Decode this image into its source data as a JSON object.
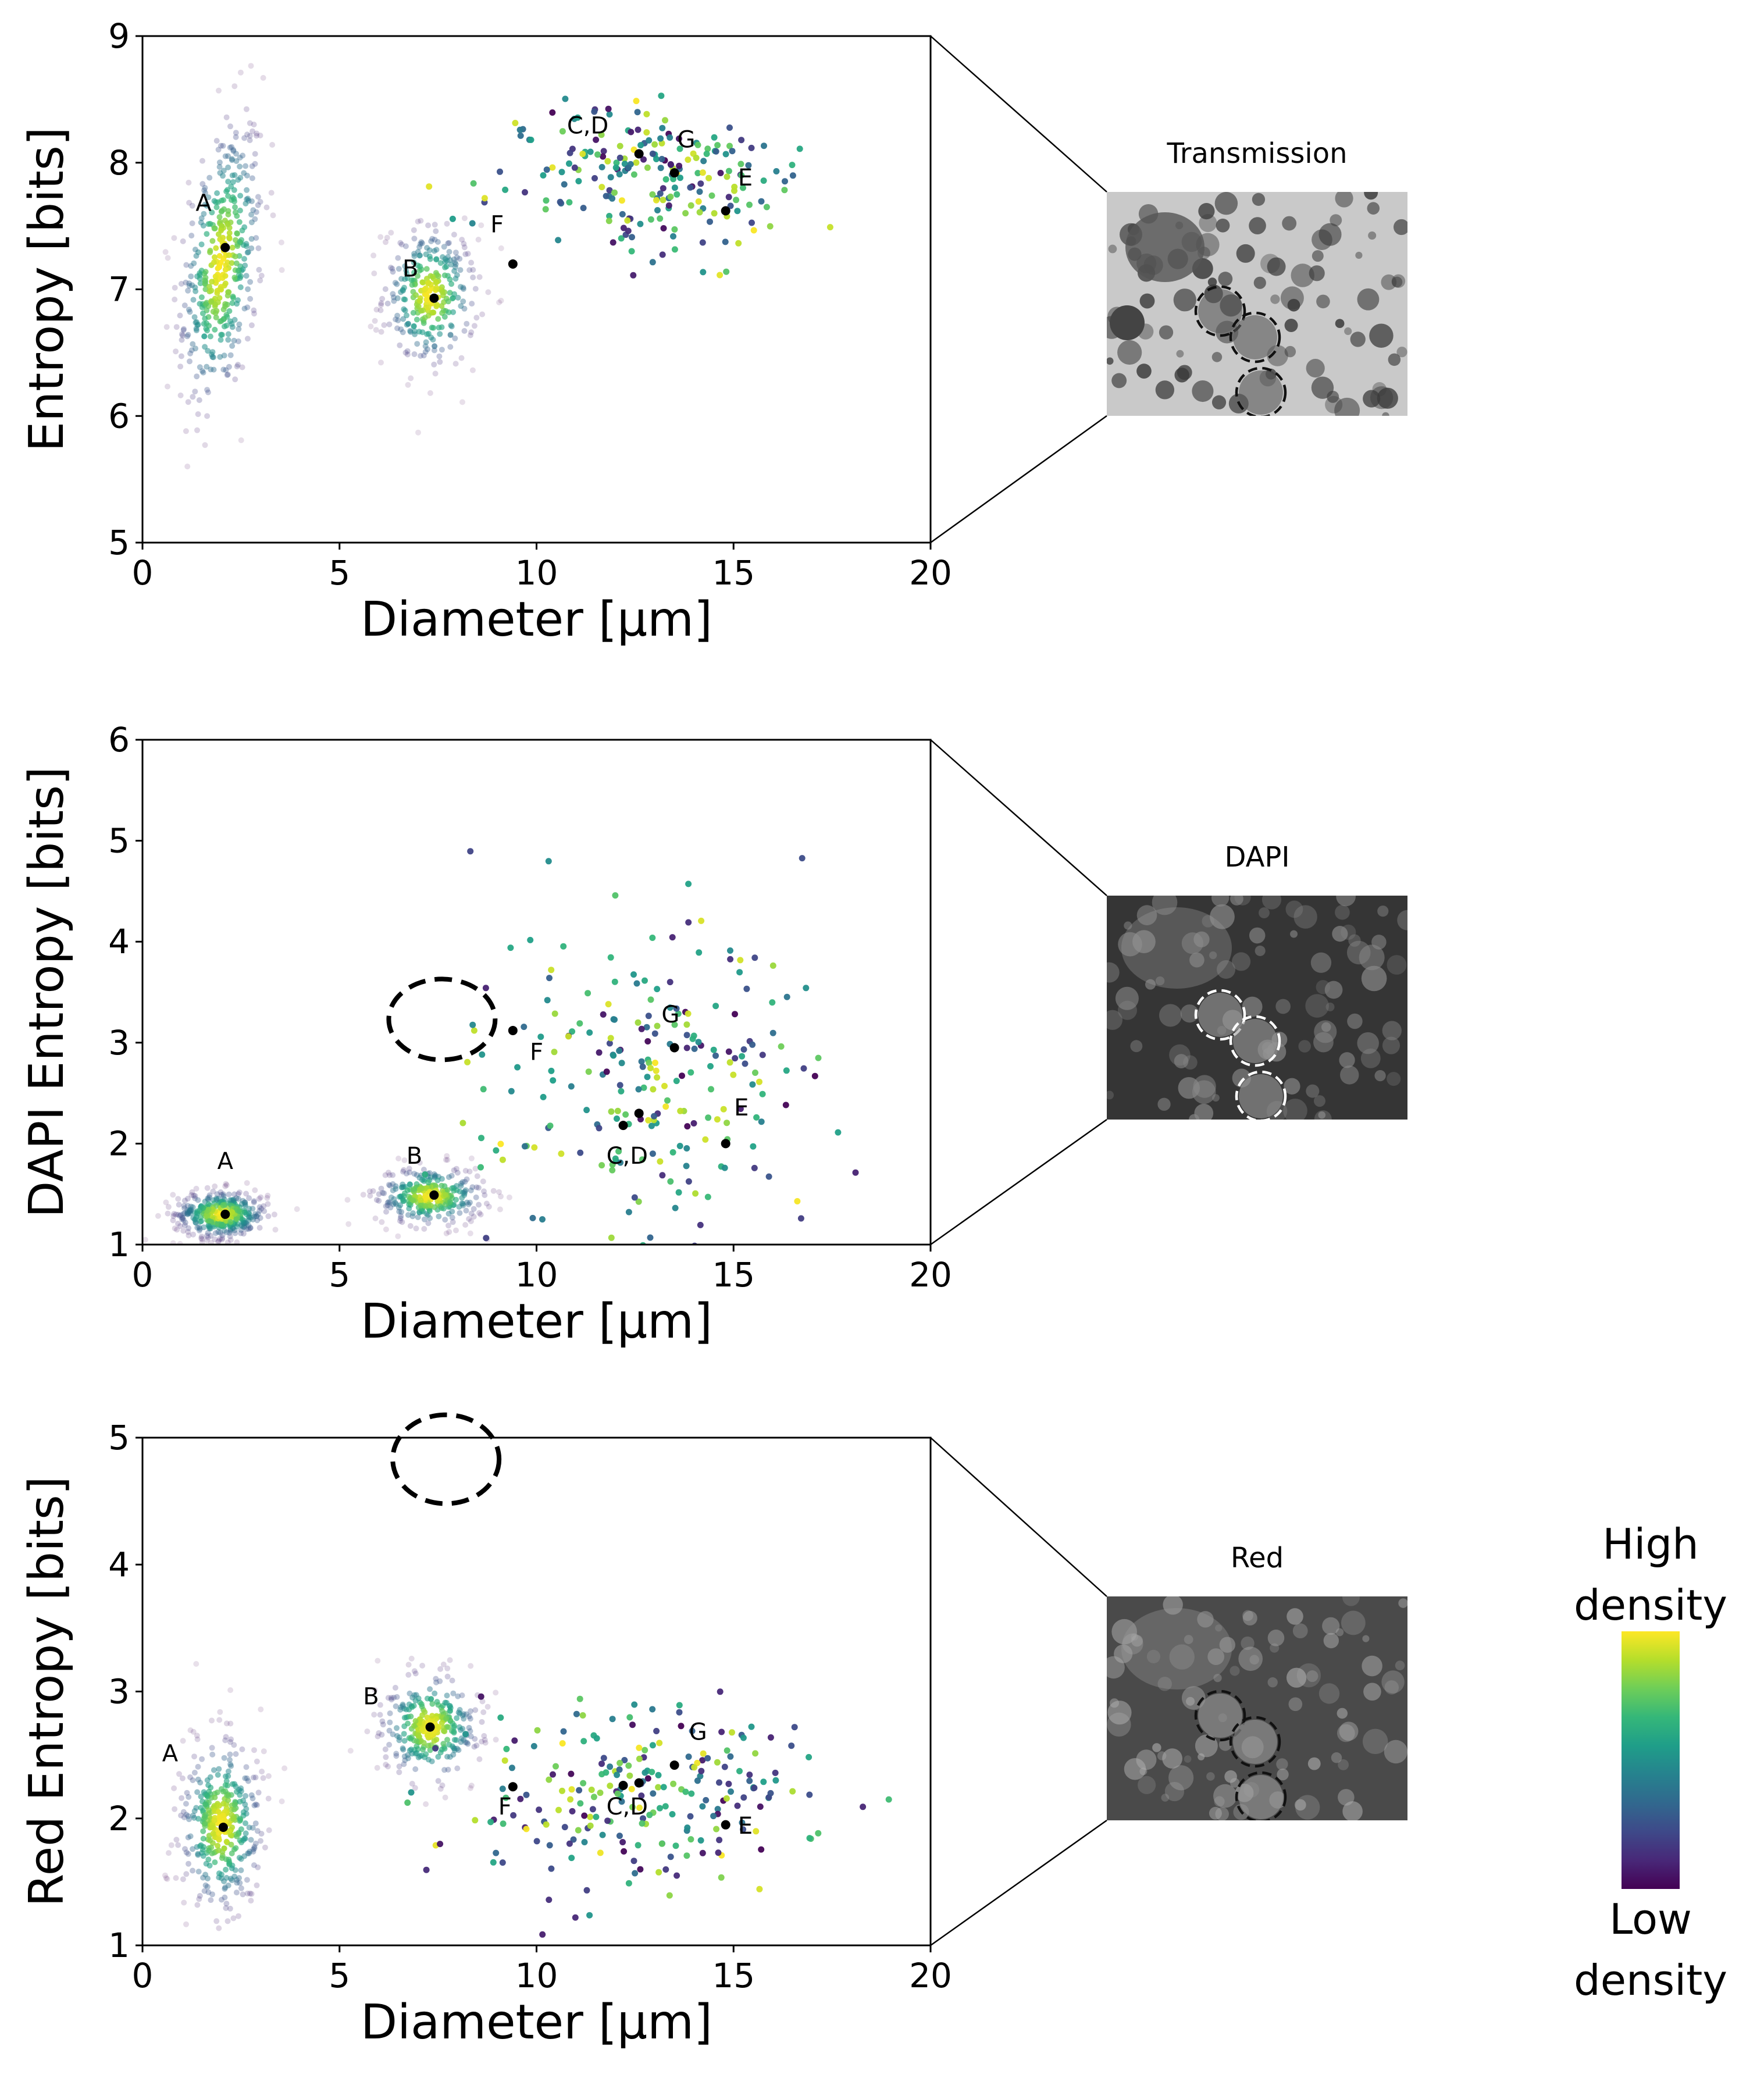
{
  "chart_data": [
    {
      "type": "scatter",
      "xlabel": "Diameter [µm]",
      "ylabel": "Entropy [bits]",
      "xlim": [
        0,
        20
      ],
      "ylim": [
        5,
        9
      ],
      "xticks": [
        "0",
        "5",
        "10",
        "15",
        "20"
      ],
      "yticks": [
        "5",
        "6",
        "7",
        "8",
        "9"
      ],
      "clusters": [
        {
          "cx": 2.0,
          "cy": 7.2,
          "sx": 0.55,
          "sy": 0.55,
          "n": 420,
          "rot": 0.75
        },
        {
          "cx": 7.3,
          "cy": 6.95,
          "sx": 0.6,
          "sy": 0.28,
          "n": 300,
          "rot": 0
        },
        {
          "cx": 12.8,
          "cy": 7.9,
          "sx": 2.0,
          "sy": 0.3,
          "n": 220,
          "rot": 0
        }
      ],
      "labeled_points": [
        {
          "label": "A",
          "x": 2.1,
          "y": 7.33,
          "lx": 1.55,
          "ly": 7.62
        },
        {
          "label": "B",
          "x": 7.4,
          "y": 6.93,
          "lx": 6.8,
          "ly": 7.1
        },
        {
          "label": "C,D",
          "x": 12.6,
          "y": 8.07,
          "lx": 11.3,
          "ly": 8.23
        },
        {
          "label": "G",
          "x": 13.5,
          "y": 7.92,
          "lx": 13.8,
          "ly": 8.12
        },
        {
          "label": "E",
          "x": 14.8,
          "y": 7.62,
          "lx": 15.3,
          "ly": 7.82
        },
        {
          "label": "F",
          "x": 9.4,
          "y": 7.2,
          "lx": 9.0,
          "ly": 7.45
        }
      ],
      "ellipses": [],
      "inset": {
        "title": "Transmission",
        "style": "light",
        "circle_color": "#111111"
      }
    },
    {
      "type": "scatter",
      "xlabel": "Diameter [µm]",
      "ylabel": "DAPI Entropy [bits]",
      "xlim": [
        0,
        20
      ],
      "ylim": [
        1,
        6
      ],
      "xticks": [
        "0",
        "5",
        "10",
        "15",
        "20"
      ],
      "yticks": [
        "1",
        "2",
        "3",
        "4",
        "5",
        "6"
      ],
      "clusters": [
        {
          "cx": 2.0,
          "cy": 1.3,
          "sx": 0.6,
          "sy": 0.12,
          "n": 380,
          "rot": 0
        },
        {
          "cx": 7.3,
          "cy": 1.48,
          "sx": 0.7,
          "sy": 0.15,
          "n": 300,
          "rot": 0
        },
        {
          "cx": 12.8,
          "cy": 2.6,
          "sx": 2.2,
          "sy": 0.8,
          "n": 230,
          "rot": 0
        }
      ],
      "labeled_points": [
        {
          "label": "A",
          "x": 2.1,
          "y": 1.3,
          "lx": 2.1,
          "ly": 1.75
        },
        {
          "label": "B",
          "x": 7.4,
          "y": 1.49,
          "lx": 6.9,
          "ly": 1.8
        },
        {
          "label": "F",
          "x": 9.4,
          "y": 3.12,
          "lx": 10.0,
          "ly": 2.83
        },
        {
          "label": "G",
          "x": 13.5,
          "y": 2.95,
          "lx": 13.4,
          "ly": 3.2
        },
        {
          "label": "E",
          "x": 14.8,
          "y": 2.0,
          "lx": 15.2,
          "ly": 2.28
        },
        {
          "label": "C,D",
          "x": 12.6,
          "y": 2.3,
          "lx": 12.3,
          "ly": 1.8
        },
        {
          "label": "",
          "x": 12.2,
          "y": 2.18,
          "lx": 0,
          "ly": 0
        }
      ],
      "ellipses": [
        {
          "cx": 7.6,
          "cy": 3.23,
          "rx": 1.35,
          "ry": 0.4
        }
      ],
      "inset": {
        "title": "DAPI",
        "style": "dark",
        "circle_color": "#ffffff"
      }
    },
    {
      "type": "scatter",
      "xlabel": "Diameter [µm]",
      "ylabel": "Red Entropy [bits]",
      "xlim": [
        0,
        20
      ],
      "ylim": [
        1,
        5
      ],
      "xticks": [
        "0",
        "5",
        "10",
        "15",
        "20"
      ],
      "yticks": [
        "1",
        "2",
        "3",
        "4",
        "5"
      ],
      "clusters": [
        {
          "cx": 2.0,
          "cy": 1.95,
          "sx": 0.55,
          "sy": 0.35,
          "n": 380,
          "rot": 0
        },
        {
          "cx": 7.3,
          "cy": 2.72,
          "sx": 0.65,
          "sy": 0.22,
          "n": 300,
          "rot": 0
        },
        {
          "cx": 12.7,
          "cy": 2.15,
          "sx": 2.1,
          "sy": 0.35,
          "n": 230,
          "rot": 0
        }
      ],
      "labeled_points": [
        {
          "label": "A",
          "x": 2.05,
          "y": 1.93,
          "lx": 0.7,
          "ly": 2.45
        },
        {
          "label": "B",
          "x": 7.3,
          "y": 2.72,
          "lx": 5.8,
          "ly": 2.9
        },
        {
          "label": "F",
          "x": 9.4,
          "y": 2.25,
          "lx": 9.2,
          "ly": 2.03
        },
        {
          "label": "C,D",
          "x": 12.6,
          "y": 2.28,
          "lx": 12.3,
          "ly": 2.03
        },
        {
          "label": "G",
          "x": 13.5,
          "y": 2.42,
          "lx": 14.1,
          "ly": 2.62
        },
        {
          "label": "E",
          "x": 14.8,
          "y": 1.95,
          "lx": 15.3,
          "ly": 1.88
        },
        {
          "label": "",
          "x": 12.2,
          "y": 2.26,
          "lx": 0,
          "ly": 0
        }
      ],
      "ellipses": [
        {
          "cx": 7.7,
          "cy": 4.83,
          "rx": 1.35,
          "ry": 0.35
        }
      ],
      "inset": {
        "title": "Red",
        "style": "gray",
        "circle_color": "#111111"
      }
    }
  ],
  "colorbar": {
    "top_label_1": "High",
    "top_label_2": "density",
    "bottom_label_1": "Low",
    "bottom_label_2": "density",
    "colors": [
      "#fde725",
      "#b5de2b",
      "#6ece58",
      "#35b779",
      "#1f9e89",
      "#26828e",
      "#31688e",
      "#3e4989",
      "#482878",
      "#440154"
    ]
  }
}
